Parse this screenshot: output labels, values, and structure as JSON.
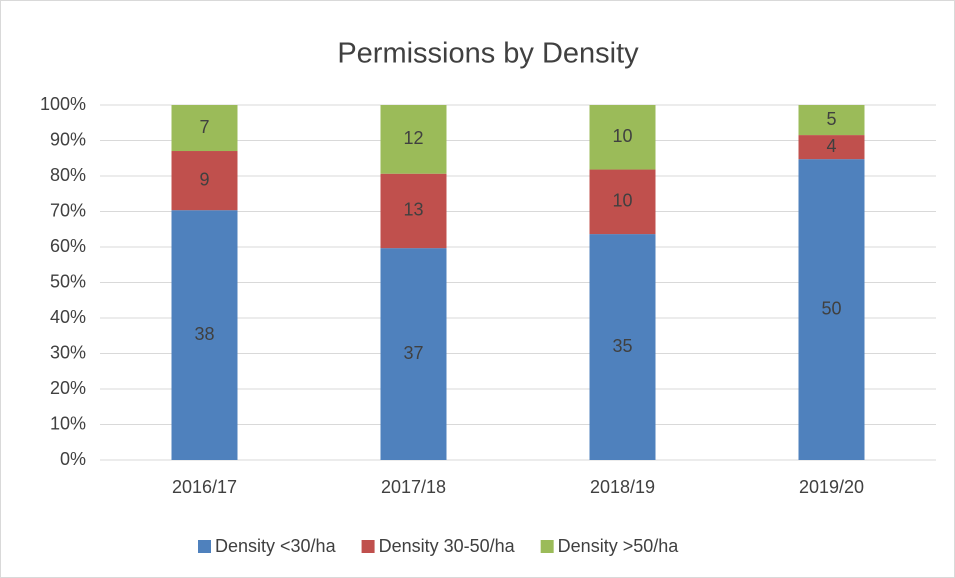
{
  "chart_data": {
    "type": "bar",
    "stacking": "percent",
    "title": "Permissions by Density",
    "categories": [
      "2016/17",
      "2017/18",
      "2018/19",
      "2019/20"
    ],
    "series": [
      {
        "name": "Density <30/ha",
        "color": "#4f81bd",
        "values": [
          38,
          37,
          35,
          50
        ]
      },
      {
        "name": "Density 30-50/ha",
        "color": "#c0504d",
        "values": [
          9,
          13,
          10,
          4
        ]
      },
      {
        "name": "Density >50/ha",
        "color": "#9bbb59",
        "values": [
          7,
          12,
          10,
          5
        ]
      }
    ],
    "ylim": [
      0,
      100
    ],
    "yticks": [
      {
        "value": 0,
        "label": "0%"
      },
      {
        "value": 10,
        "label": "10%"
      },
      {
        "value": 20,
        "label": "20%"
      },
      {
        "value": 30,
        "label": "30%"
      },
      {
        "value": 40,
        "label": "40%"
      },
      {
        "value": 50,
        "label": "50%"
      },
      {
        "value": 60,
        "label": "60%"
      },
      {
        "value": 70,
        "label": "70%"
      },
      {
        "value": 80,
        "label": "80%"
      },
      {
        "value": 90,
        "label": "90%"
      },
      {
        "value": 100,
        "label": "100%"
      }
    ],
    "grid": true,
    "legend": "bottom"
  }
}
